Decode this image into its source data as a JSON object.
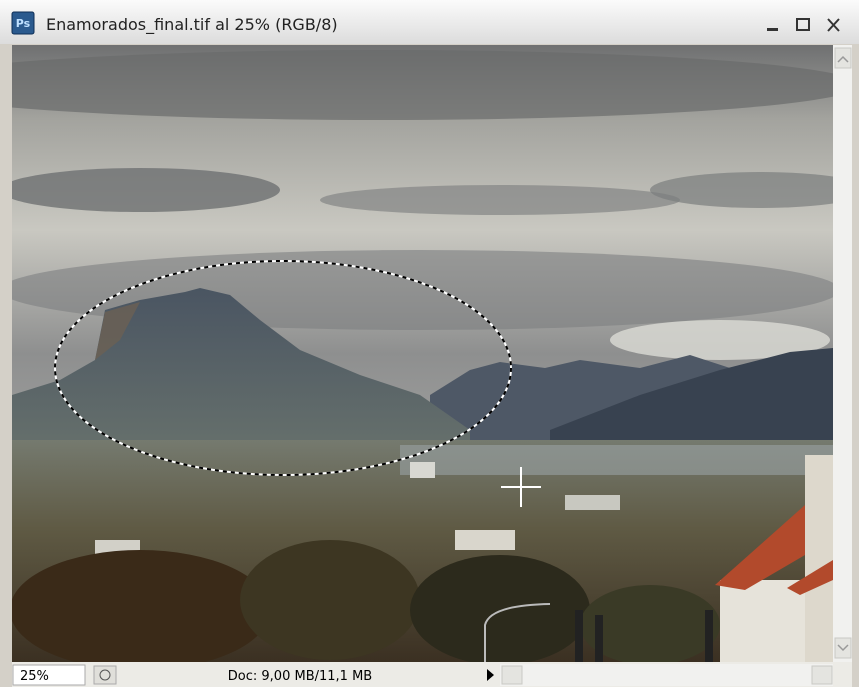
{
  "window": {
    "app_icon": "Ps",
    "title": "Enamorados_final.tif al 25% (RGB/8)",
    "zoom": "25%",
    "doc_info": "Doc: 9,00 MB/11,1 MB"
  }
}
